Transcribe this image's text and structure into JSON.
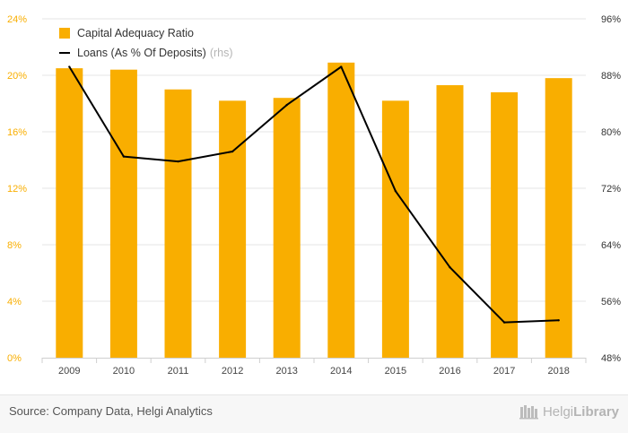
{
  "chart_data": {
    "type": "bar+line",
    "categories": [
      "2009",
      "2010",
      "2011",
      "2012",
      "2013",
      "2014",
      "2015",
      "2016",
      "2017",
      "2018"
    ],
    "series": [
      {
        "name": "Capital Adequacy Ratio",
        "type": "bar",
        "axis": "left",
        "values": [
          20.5,
          20.4,
          19.0,
          18.2,
          18.4,
          20.9,
          18.2,
          19.3,
          18.8,
          19.8
        ]
      },
      {
        "name": "Loans (As % Of Deposits)",
        "name_suffix": "(rhs)",
        "type": "line",
        "axis": "right",
        "values": [
          89.2,
          76.5,
          75.8,
          77.2,
          83.8,
          89.2,
          71.6,
          60.8,
          53.0,
          53.3
        ]
      }
    ],
    "y_left": {
      "min": 0,
      "max": 24,
      "ticks": [
        "0%",
        "4%",
        "8%",
        "12%",
        "16%",
        "20%",
        "24%"
      ]
    },
    "y_right": {
      "min": 48,
      "max": 96,
      "ticks": [
        "48%",
        "56%",
        "64%",
        "72%",
        "80%",
        "88%",
        "96%"
      ]
    },
    "gridlines": true,
    "legend_position": "top-left"
  },
  "colors": {
    "bar": "#f9ae00",
    "line": "#000000",
    "left_axis_text": "#f9ae00",
    "right_axis_text": "#333333",
    "grid": "#e4e4e4"
  },
  "footer": {
    "source": "Source: Company Data, Helgi Analytics",
    "brand_prefix": "Helgi",
    "brand_suffix": "Library",
    "brand_icon": "bookshelf-icon"
  }
}
